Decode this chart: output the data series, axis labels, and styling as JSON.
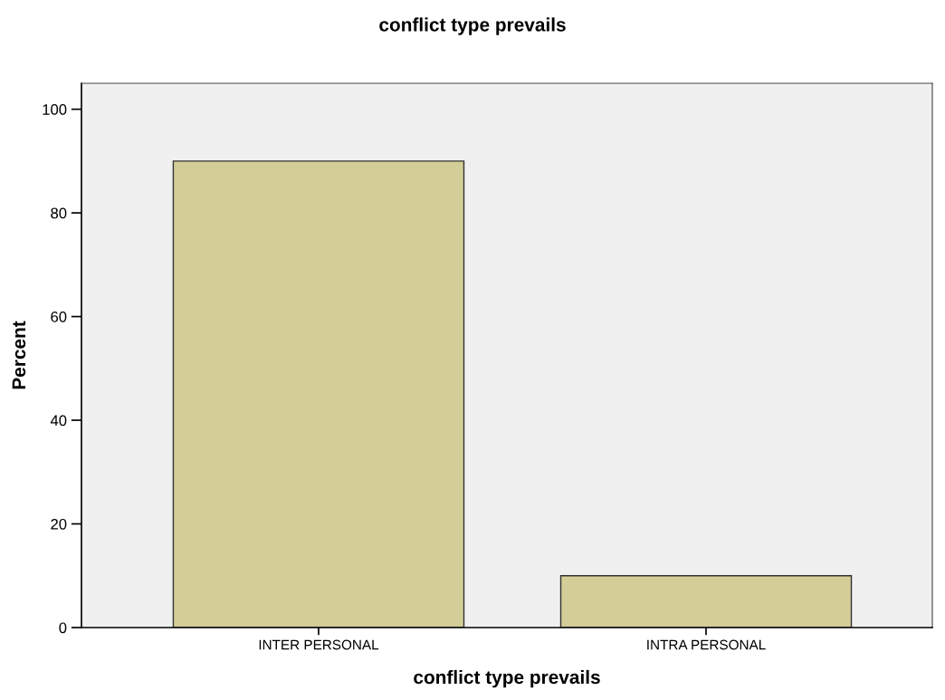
{
  "chart_data": {
    "type": "bar",
    "title": "conflict type prevails",
    "xlabel": "conflict type prevails",
    "ylabel": "Percent",
    "categories": [
      "INTER PERSONAL",
      "INTRA PERSONAL"
    ],
    "values": [
      90,
      10
    ],
    "color": "#d3cd97",
    "ylim": [
      0,
      105
    ],
    "yticks": [
      0,
      20,
      40,
      60,
      80,
      100
    ],
    "grid": false,
    "legend": false
  }
}
